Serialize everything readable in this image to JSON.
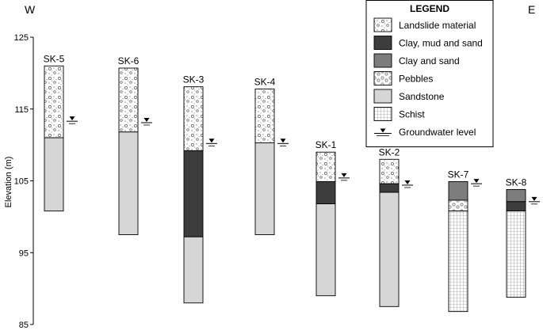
{
  "directions": {
    "west": "W",
    "east": "E"
  },
  "axis": {
    "label": "Elevation (m)",
    "min": 85,
    "max": 125,
    "ticks": [
      125,
      115,
      105,
      95,
      85
    ]
  },
  "legend": {
    "title": "LEGEND",
    "items": [
      {
        "key": "landslide",
        "label": "Landslide material",
        "pattern": "landslide"
      },
      {
        "key": "clay_mud_sand",
        "label": "Clay, mud and sand",
        "color": "#3d3d3d"
      },
      {
        "key": "clay_sand",
        "label": "Clay and sand",
        "color": "#7d7d7d"
      },
      {
        "key": "pebbles",
        "label": "Pebbles",
        "pattern": "pebbles"
      },
      {
        "key": "sandstone",
        "label": "Sandstone",
        "color": "#d6d6d6"
      },
      {
        "key": "schist",
        "label": "Schist",
        "pattern": "schist"
      },
      {
        "key": "groundwater",
        "label": "Groundwater level",
        "symbol": "groundwater-triangle"
      }
    ]
  },
  "boreholes": [
    {
      "name": "SK-5",
      "groundwater": 113.3,
      "layers": [
        {
          "material": "landslide",
          "top": 121.0,
          "bottom": 111.0
        },
        {
          "material": "sandstone",
          "top": 111.0,
          "bottom": 100.8
        }
      ]
    },
    {
      "name": "SK-6",
      "groundwater": 113.1,
      "layers": [
        {
          "material": "landslide",
          "top": 120.7,
          "bottom": 111.8
        },
        {
          "material": "sandstone",
          "top": 111.8,
          "bottom": 97.5
        }
      ]
    },
    {
      "name": "SK-3",
      "groundwater": 110.2,
      "layers": [
        {
          "material": "landslide",
          "top": 118.1,
          "bottom": 109.2
        },
        {
          "material": "clay_mud_sand",
          "top": 109.2,
          "bottom": 97.2
        },
        {
          "material": "sandstone",
          "top": 97.2,
          "bottom": 88.0
        }
      ]
    },
    {
      "name": "SK-4",
      "groundwater": 110.2,
      "layers": [
        {
          "material": "landslide",
          "top": 117.8,
          "bottom": 110.3
        },
        {
          "material": "sandstone",
          "top": 110.3,
          "bottom": 97.5
        }
      ]
    },
    {
      "name": "SK-1",
      "groundwater": 105.4,
      "layers": [
        {
          "material": "landslide",
          "top": 109.0,
          "bottom": 104.9
        },
        {
          "material": "clay_mud_sand",
          "top": 104.9,
          "bottom": 101.8
        },
        {
          "material": "sandstone",
          "top": 101.8,
          "bottom": 89.0
        }
      ]
    },
    {
      "name": "SK-2",
      "groundwater": 104.4,
      "layers": [
        {
          "material": "landslide",
          "top": 108.0,
          "bottom": 104.6
        },
        {
          "material": "clay_mud_sand",
          "top": 104.6,
          "bottom": 103.4
        },
        {
          "material": "sandstone",
          "top": 103.4,
          "bottom": 87.5
        }
      ]
    },
    {
      "name": "SK-7",
      "groundwater": 104.6,
      "layers": [
        {
          "material": "clay_sand",
          "top": 104.9,
          "bottom": 102.3
        },
        {
          "material": "pebbles",
          "top": 102.3,
          "bottom": 100.8
        },
        {
          "material": "schist",
          "top": 100.8,
          "bottom": 86.8
        }
      ]
    },
    {
      "name": "SK-8",
      "groundwater": 102.1,
      "layers": [
        {
          "material": "clay_sand",
          "top": 103.8,
          "bottom": 102.1
        },
        {
          "material": "clay_mud_sand",
          "top": 102.1,
          "bottom": 100.8
        },
        {
          "material": "schist",
          "top": 100.8,
          "bottom": 88.8
        }
      ]
    }
  ]
}
